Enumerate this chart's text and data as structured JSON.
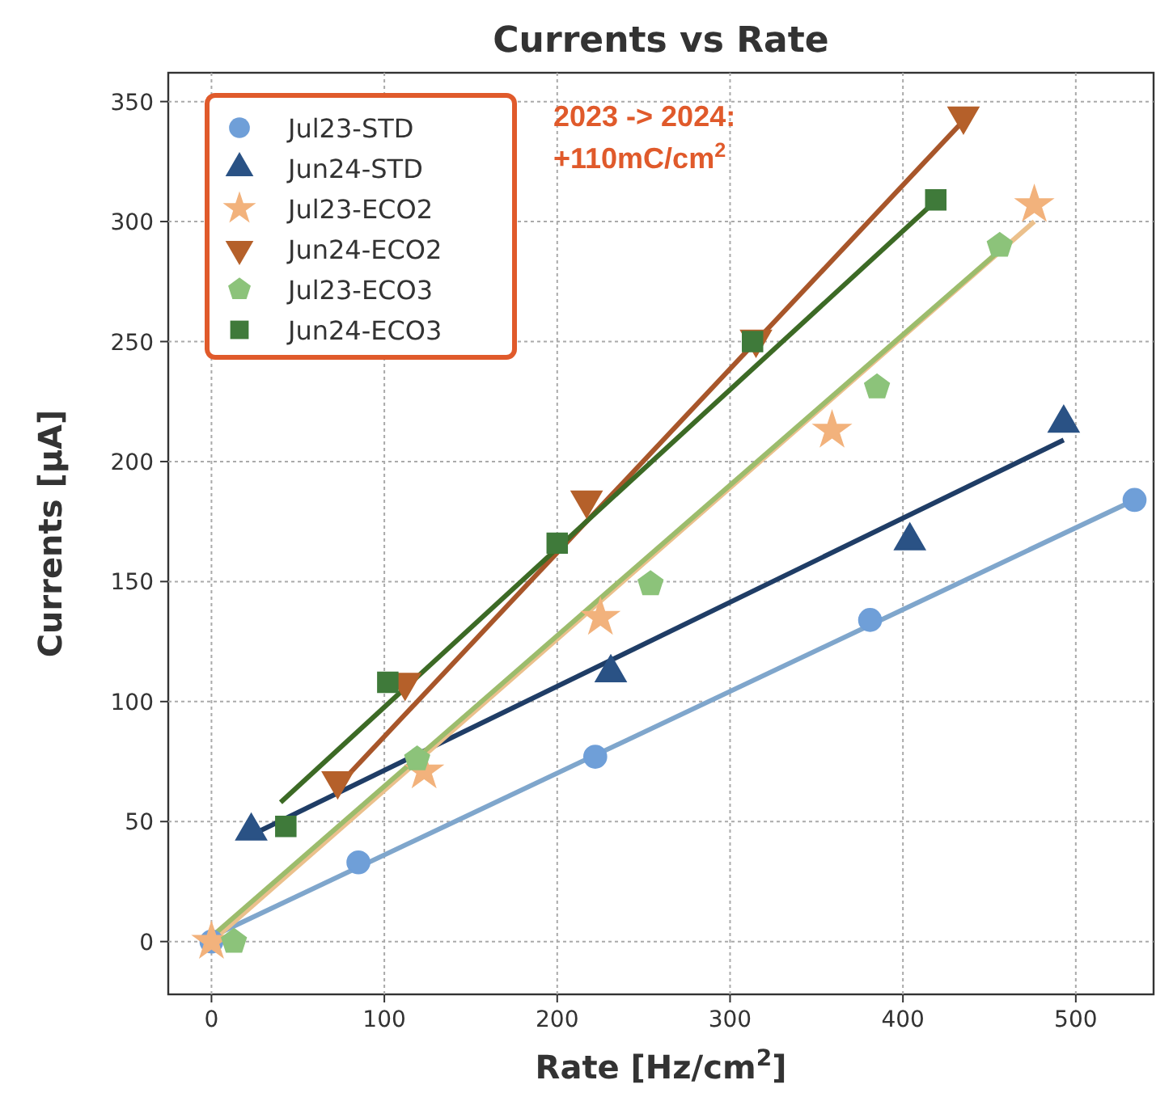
{
  "chart_data": {
    "type": "scatter",
    "title": "Currents vs Rate",
    "xlabel": "Rate [Hz/cm$^{2}$]",
    "ylabel": "Currents [µA]",
    "annotations": [
      "2023 -> 2024:\n+110mC/cm$^{2}$"
    ],
    "xlim": [
      -25,
      545
    ],
    "ylim": [
      -22,
      362
    ],
    "xticks": [
      0,
      100,
      200,
      300,
      400,
      500
    ],
    "yticks": [
      0,
      50,
      100,
      150,
      200,
      250,
      300,
      350
    ],
    "grid": true,
    "legend": "top left",
    "series": [
      {
        "type": "line",
        "color": "#7fa6cc",
        "marker": "none",
        "x": [
          0,
          534
        ],
        "values": [
          2,
          184
        ]
      },
      {
        "type": "line",
        "color": "#1f3d66",
        "marker": "none",
        "x": [
          22,
          493
        ],
        "values": [
          44,
          209
        ]
      },
      {
        "type": "line",
        "color": "#ebc08c",
        "marker": "none",
        "x": [
          0,
          476
        ],
        "values": [
          0,
          300
        ]
      },
      {
        "type": "line",
        "color": "#a8562a",
        "marker": "none",
        "x": [
          72,
          435
        ],
        "values": [
          64,
          342
        ]
      },
      {
        "type": "line",
        "color": "#9cbc6c",
        "marker": "none",
        "x": [
          0,
          456
        ],
        "values": [
          2,
          288
        ]
      },
      {
        "type": "line",
        "color": "#3c6a25",
        "marker": "none",
        "x": [
          40,
          415
        ],
        "values": [
          58,
          306
        ]
      },
      {
        "name": "Jul23-STD",
        "color": "#6f9fd8",
        "marker": "circle",
        "x": [
          0,
          85,
          222,
          381,
          534
        ],
        "values": [
          0,
          33,
          77,
          134,
          184
        ]
      },
      {
        "name": "Jun24-STD",
        "color": "#2a5285",
        "marker": "triangle",
        "x": [
          23,
          231,
          404,
          493
        ],
        "values": [
          46,
          112,
          167,
          216
        ]
      },
      {
        "name": "Jul23-ECO2",
        "color": "#f2b27c",
        "marker": "star",
        "x": [
          0,
          123,
          225,
          359,
          476
        ],
        "values": [
          0,
          71,
          135,
          213,
          307
        ]
      },
      {
        "name": "Jun24-ECO2",
        "color": "#b5602a",
        "marker": "triangle-down",
        "x": [
          73,
          112,
          217,
          315,
          435
        ],
        "values": [
          67,
          108,
          184,
          251,
          344
        ]
      },
      {
        "name": "Jul23-ECO3",
        "color": "#8cc37a",
        "x": [
          13,
          119,
          254,
          385,
          456
        ],
        "values": [
          0,
          76,
          149,
          231,
          290
        ]
      },
      {
        "name": "Jun24-ECO3",
        "color": "#3f7a3a",
        "marker": "square",
        "x": [
          43,
          102,
          200,
          313,
          419
        ],
        "values": [
          48,
          108,
          166,
          250,
          309
        ]
      }
    ]
  }
}
